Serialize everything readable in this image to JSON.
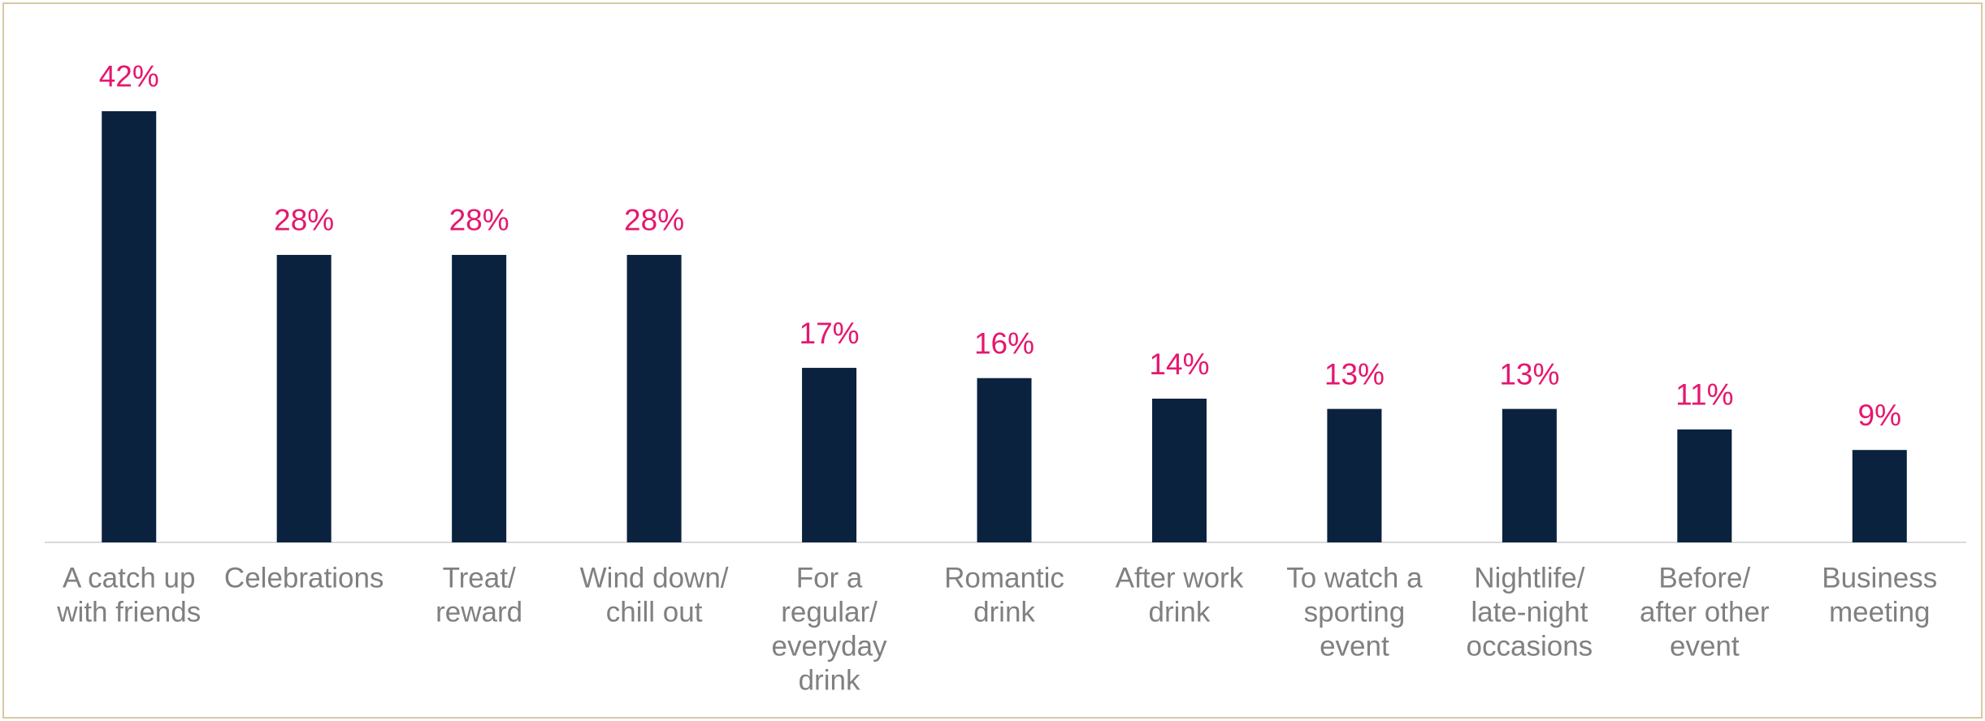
{
  "chart_data": {
    "type": "bar",
    "categories": [
      [
        "A catch up",
        "with friends"
      ],
      [
        "Celebrations"
      ],
      [
        "Treat/",
        "reward"
      ],
      [
        "Wind down/",
        "chill out"
      ],
      [
        "For a",
        "regular/",
        "everyday",
        "drink"
      ],
      [
        "Romantic",
        "drink"
      ],
      [
        "After work",
        "drink"
      ],
      [
        "To watch a",
        "sporting",
        "event"
      ],
      [
        "Nightlife/",
        "late-night",
        "occasions"
      ],
      [
        "Before/",
        "after other",
        "event"
      ],
      [
        "Business",
        "meeting"
      ]
    ],
    "values": [
      42,
      28,
      28,
      28,
      17,
      16,
      14,
      13,
      13,
      11,
      9
    ],
    "value_labels": [
      "42%",
      "28%",
      "28%",
      "28%",
      "17%",
      "16%",
      "14%",
      "13%",
      "13%",
      "11%",
      "9%"
    ],
    "color": "#0b223f",
    "label_color": "#e5176f",
    "ylim": [
      0,
      45
    ]
  }
}
